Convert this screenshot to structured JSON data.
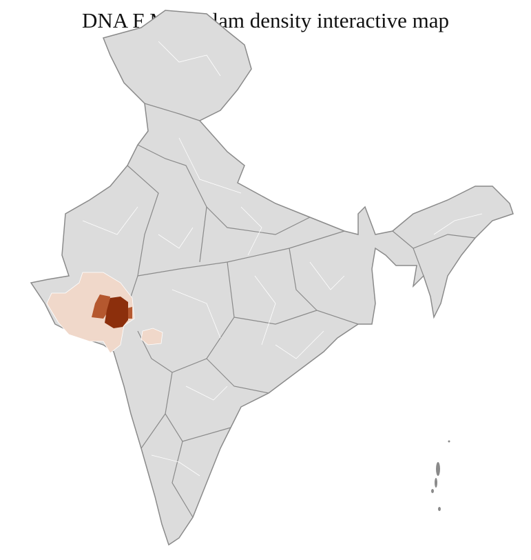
{
  "title": "DNA F Molesalam density interactive map",
  "colors": {
    "background_region": "#dcdcdc",
    "state_border": "#8a8a8a",
    "district_border": "#ffffff",
    "density_low": "#f0d8ca",
    "density_medium": "#b5582f",
    "density_high": "#8c2f0c"
  },
  "highlighted_regions": [
    {
      "area": "Gujarat (most districts)",
      "density": "low"
    },
    {
      "area": "Central Gujarat (west)",
      "density": "medium"
    },
    {
      "area": "Central Gujarat (east)",
      "density": "medium"
    },
    {
      "area": "Central Gujarat core",
      "density": "high"
    },
    {
      "area": "North Maharashtra district",
      "density": "low"
    }
  ]
}
